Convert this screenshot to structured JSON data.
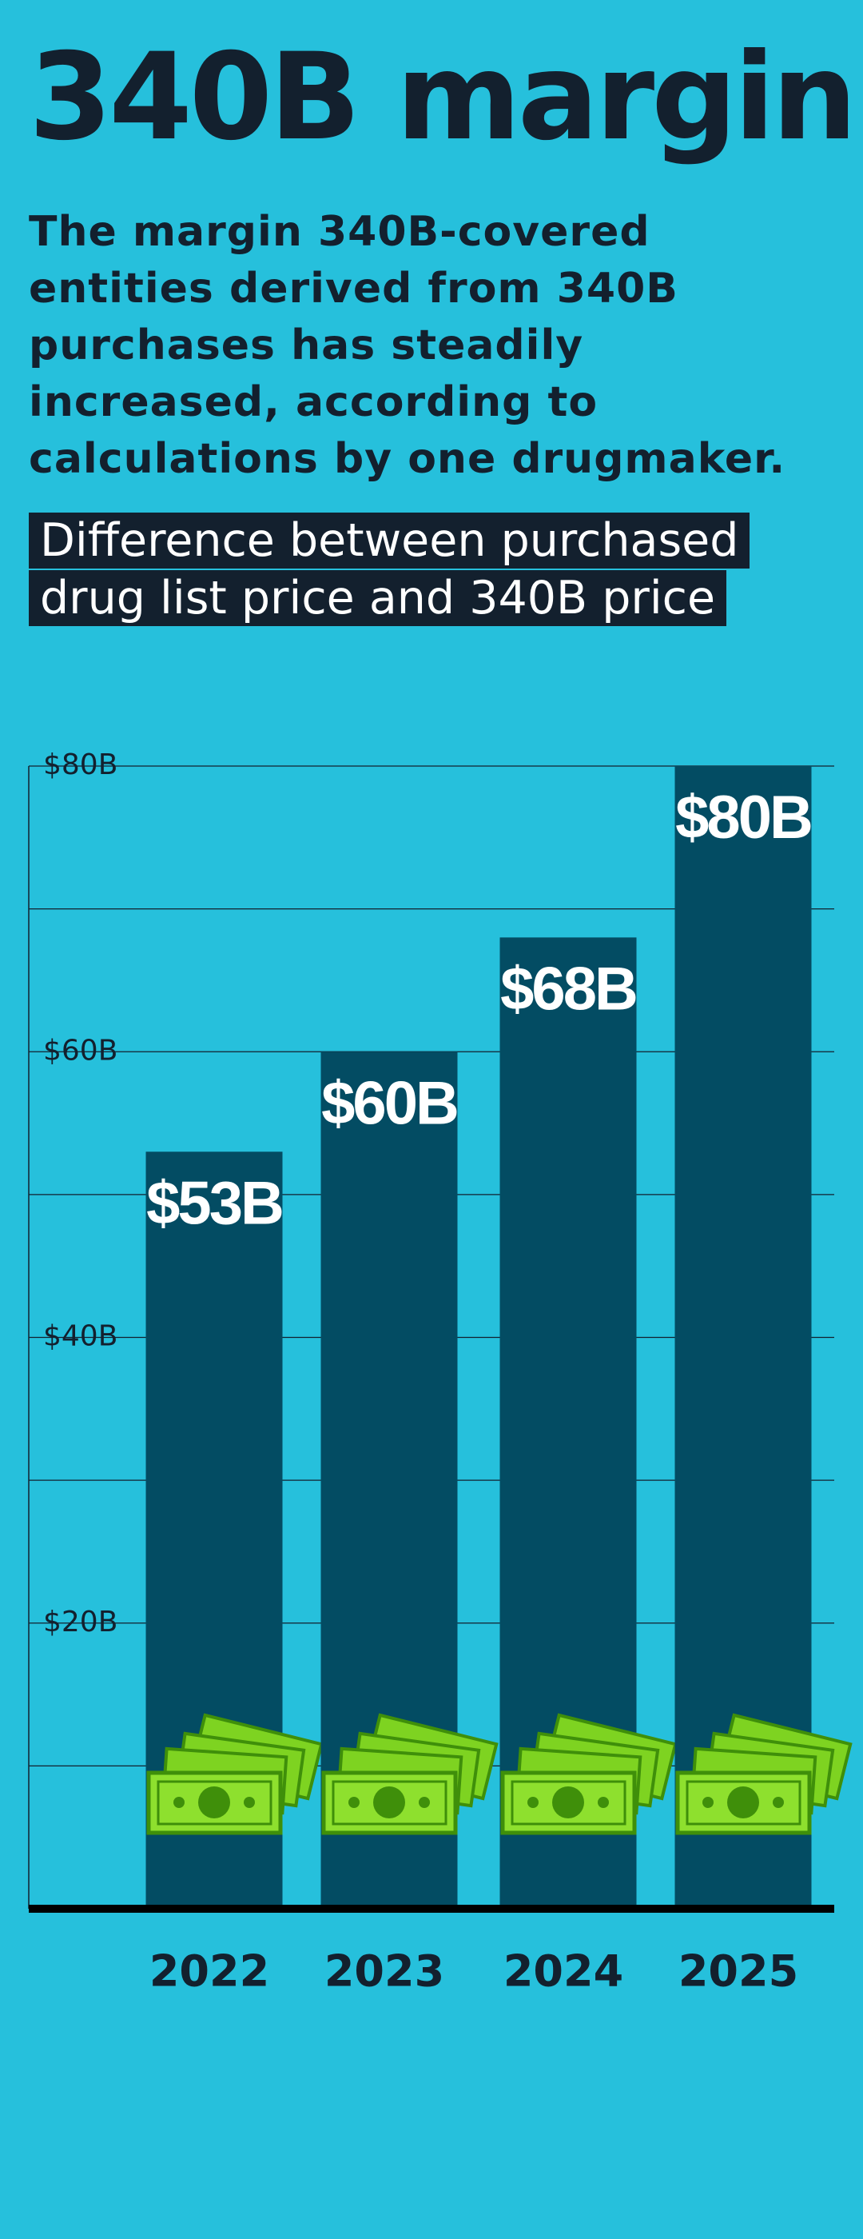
{
  "chart_data": {
    "type": "bar",
    "title": "340B margin",
    "subtitle": "The margin 340B-covered entities derived from 340B purchases has steadily increased, according to calculations by one drugmaker.",
    "chart_title": "Difference between purchased drug list price and 340B price",
    "categories": [
      "2022",
      "2023",
      "2024",
      "2025"
    ],
    "values": [
      53,
      60,
      68,
      80
    ],
    "value_labels": [
      "$53B",
      "$60B",
      "$68B",
      "$80B"
    ],
    "color": "#034c63",
    "ylim": [
      0,
      80
    ],
    "yticks": [
      {
        "value": 20,
        "label": "$20B"
      },
      {
        "value": 40,
        "label": "$40B"
      },
      {
        "value": 60,
        "label": "$60B"
      },
      {
        "value": 80,
        "label": "$80B"
      }
    ],
    "minor_yticks": [
      10,
      30,
      50,
      70
    ],
    "grid": true
  }
}
